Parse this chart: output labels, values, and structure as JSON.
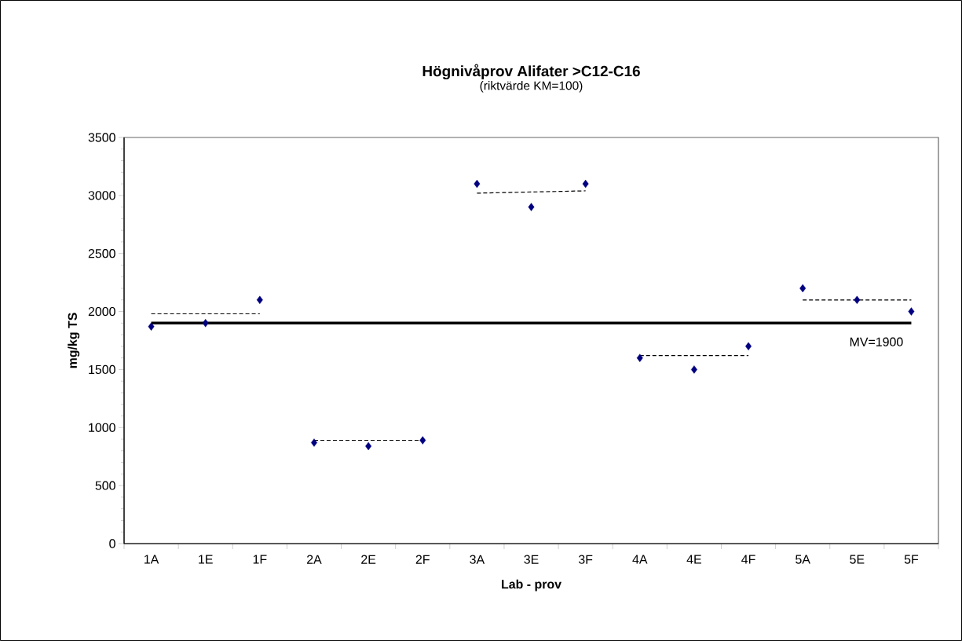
{
  "chart_data": {
    "type": "scatter",
    "title": "Högnivåprov Alifater >C12-C16",
    "subtitle": "(riktvärde KM=100)",
    "xlabel": "Lab - prov",
    "ylabel": "mg/kg TS",
    "categories": [
      "1A",
      "1E",
      "1F",
      "2A",
      "2E",
      "2F",
      "3A",
      "3E",
      "3F",
      "4A",
      "4E",
      "4F",
      "5A",
      "5E",
      "5F"
    ],
    "ylim": [
      0,
      3500
    ],
    "yticks": [
      0,
      500,
      1000,
      1500,
      2000,
      2500,
      3000,
      3500
    ],
    "marker": "diamond",
    "grid": false,
    "legend": false,
    "series": [
      {
        "color": "#000080",
        "values": [
          1870,
          1900,
          2100,
          870,
          840,
          890,
          3100,
          2900,
          3100,
          1600,
          1500,
          1700,
          2200,
          2100,
          2000
        ]
      },
      {
        "type": "line",
        "color": "#000000",
        "line_style": "dashed",
        "marker": "none",
        "values": [
          1980,
          1980,
          1980,
          null,
          null,
          null,
          null,
          null,
          null,
          null,
          null,
          null,
          null,
          null,
          null
        ]
      },
      {
        "type": "line",
        "color": "#000000",
        "line_style": "dashed",
        "marker": "none",
        "values": [
          null,
          null,
          null,
          890,
          890,
          890,
          null,
          null,
          null,
          null,
          null,
          null,
          null,
          null,
          null
        ]
      },
      {
        "type": "line",
        "color": "#000000",
        "line_style": "dashed",
        "marker": "none",
        "values": [
          null,
          null,
          null,
          null,
          null,
          null,
          3020,
          3030,
          3040,
          null,
          null,
          null,
          null,
          null,
          null
        ]
      },
      {
        "type": "line",
        "color": "#000000",
        "line_style": "dashed",
        "marker": "none",
        "values": [
          null,
          null,
          null,
          null,
          null,
          null,
          null,
          null,
          null,
          1620,
          1620,
          1620,
          null,
          null,
          null
        ]
      },
      {
        "type": "line",
        "color": "#000000",
        "line_style": "dashed",
        "marker": "none",
        "values": [
          null,
          null,
          null,
          null,
          null,
          null,
          null,
          null,
          null,
          null,
          null,
          null,
          2100,
          2100,
          2100
        ]
      }
    ],
    "ref_lines": [
      {
        "axis": "y",
        "value": 1900,
        "label": "MV=1900",
        "color": "#000000"
      }
    ]
  }
}
